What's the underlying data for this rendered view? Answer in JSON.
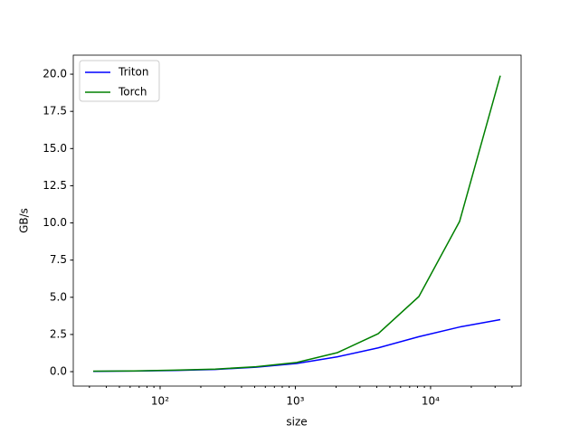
{
  "chart_data": {
    "type": "line",
    "x_label": "size",
    "y_label": "GB/s",
    "x": [
      32,
      64,
      128,
      256,
      512,
      1024,
      2048,
      4096,
      8192,
      16384,
      32768
    ],
    "series": [
      {
        "name": "Triton",
        "color": "#0000ff",
        "values": [
          0.02,
          0.04,
          0.08,
          0.15,
          0.3,
          0.55,
          1.0,
          1.6,
          2.35,
          3.0,
          3.5
        ]
      },
      {
        "name": "Torch",
        "color": "#008000",
        "values": [
          0.03,
          0.05,
          0.1,
          0.17,
          0.33,
          0.62,
          1.28,
          2.55,
          5.05,
          10.1,
          19.9
        ]
      }
    ],
    "xscale": "log",
    "xlim": [
      22.8,
      46700
    ],
    "xticks": [
      {
        "value": 100,
        "label": "10²"
      },
      {
        "value": 1000,
        "label": "10³"
      },
      {
        "value": 10000,
        "label": "10⁴"
      }
    ],
    "xminorticks": [
      30,
      40,
      50,
      60,
      70,
      80,
      90,
      200,
      300,
      400,
      500,
      600,
      700,
      800,
      900,
      2000,
      3000,
      4000,
      5000,
      6000,
      7000,
      8000,
      9000,
      20000,
      30000,
      40000
    ],
    "ylim": [
      -0.97,
      21.28
    ],
    "yticks": [
      {
        "value": 0,
        "label": "0.0"
      },
      {
        "value": 2.5,
        "label": "2.5"
      },
      {
        "value": 5,
        "label": "5.0"
      },
      {
        "value": 7.5,
        "label": "7.5"
      },
      {
        "value": 10,
        "label": "10.0"
      },
      {
        "value": 12.5,
        "label": "12.5"
      },
      {
        "value": 15,
        "label": "15.0"
      },
      {
        "value": 17.5,
        "label": "17.5"
      },
      {
        "value": 20,
        "label": "20.0"
      }
    ],
    "legend": "upper left"
  }
}
